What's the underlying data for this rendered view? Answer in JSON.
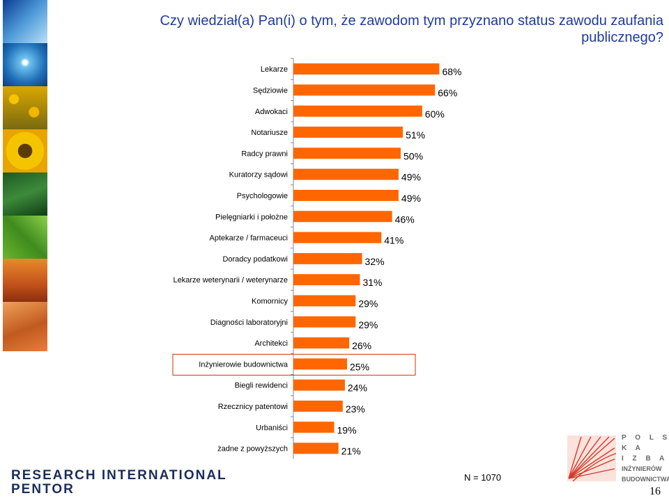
{
  "title": "Czy wiedział(a) Pan(i) o tym, że zawodom tym przyznano status zawodu zaufania publicznego?",
  "chart_data": {
    "type": "bar",
    "orientation": "horizontal",
    "categories": [
      "Lekarze",
      "Sędziowie",
      "Adwokaci",
      "Notariusze",
      "Radcy prawni",
      "Kuratorzy sądowi",
      "Psychologowie",
      "Pielęgniarki i położne",
      "Aptekarze / farmaceuci",
      "Doradcy podatkowi",
      "Lekarze weterynarii / weterynarze",
      "Komornicy",
      "Diagności laboratoryjni",
      "Architekci",
      "Inżynierowie budownictwa",
      "Biegli rewidenci",
      "Rzecznicy patentowi",
      "Urbaniści",
      "żadne z powyższych"
    ],
    "values": [
      68,
      66,
      60,
      51,
      50,
      49,
      49,
      46,
      41,
      32,
      31,
      29,
      29,
      26,
      25,
      24,
      23,
      19,
      21
    ],
    "value_labels": [
      "68%",
      "66%",
      "60%",
      "51%",
      "50%",
      "49%",
      "49%",
      "46%",
      "41%",
      "32%",
      "31%",
      "29%",
      "29%",
      "26%",
      "25%",
      "24%",
      "23%",
      "19%",
      "21%"
    ],
    "highlighted_category": "Inżynierowie budownictwa",
    "bar_color": "#ff6600",
    "highlight_color": "#cc3300",
    "xlim": [
      0,
      100
    ],
    "grid": false
  },
  "sample_size": "N = 1070",
  "footer": {
    "company_line1": "RESEARCH INTERNATIONAL",
    "company_line2": "PENTOR",
    "org_letters_1": "P O L S K A",
    "org_letters_2": "I Z B A",
    "org_line3": "INŻYNIERÓW",
    "org_line4": "BUDOWNICTWA",
    "page_number": "16"
  },
  "side_images": [
    "water-splash",
    "water-drop",
    "sunflower-field",
    "sunflower",
    "forest",
    "leaf",
    "sand-dunes",
    "desert",
    "footprint-sand"
  ]
}
